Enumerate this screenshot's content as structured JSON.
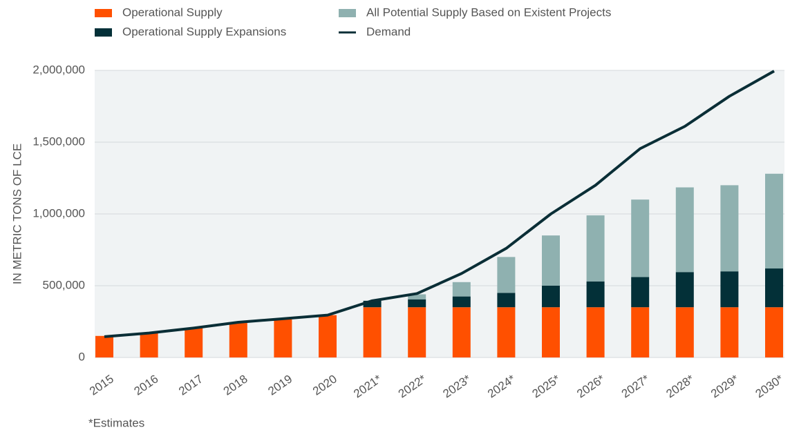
{
  "chart_data": {
    "type": "bar",
    "y_axis_label": "IN METRIC TONS OF LCE",
    "footnote": "*Estimates",
    "categories": [
      "2015",
      "2016",
      "2017",
      "2018",
      "2019",
      "2020",
      "2021*",
      "2022*",
      "2023*",
      "2024*",
      "2025*",
      "2026*",
      "2027*",
      "2028*",
      "2029*",
      "2030*"
    ],
    "series": [
      {
        "name": "Operational Supply",
        "type": "bar",
        "color": "#ff5000",
        "values": [
          150000,
          170000,
          205000,
          240000,
          265000,
          295000,
          350000,
          350000,
          350000,
          350000,
          350000,
          350000,
          350000,
          350000,
          350000,
          350000
        ]
      },
      {
        "name": "Operational Supply Expansions",
        "type": "bar",
        "color": "#033038",
        "values": [
          0,
          0,
          0,
          0,
          0,
          0,
          45000,
          55000,
          75000,
          100000,
          150000,
          180000,
          210000,
          245000,
          250000,
          270000
        ]
      },
      {
        "name": "All Potential Supply Based on Existent Projects",
        "type": "bar",
        "color": "#8fb1b0",
        "values": [
          0,
          0,
          0,
          0,
          0,
          0,
          0,
          35000,
          100000,
          250000,
          350000,
          460000,
          540000,
          590000,
          600000,
          660000
        ]
      },
      {
        "name": "Demand",
        "type": "line",
        "color": "#0a2e36",
        "values": [
          145000,
          170000,
          205000,
          245000,
          270000,
          295000,
          395000,
          445000,
          585000,
          760000,
          1000000,
          1200000,
          1455000,
          1610000,
          1820000,
          1995000
        ]
      }
    ],
    "ylim": [
      0,
      2000000
    ],
    "yticks": [
      0,
      {
        "value": 500000,
        "label": "500,000"
      },
      {
        "value": 1000000,
        "label": "1,000,000"
      },
      {
        "value": 1500000,
        "label": "1,500,000"
      },
      {
        "value": 2000000,
        "label": "2,000,000"
      }
    ],
    "grid": true,
    "stacked": true
  }
}
